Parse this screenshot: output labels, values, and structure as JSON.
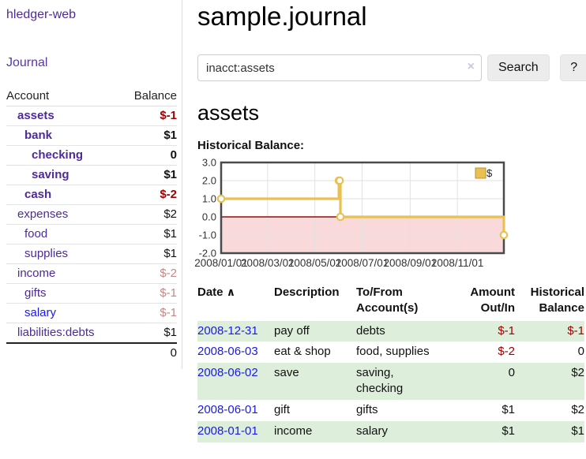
{
  "colors": {
    "link_purple": "#4e2a9a",
    "link_blue": "#1a1ae8",
    "negative_red": "#a40000",
    "negative_faded": "#c38888",
    "row_stripe_green": "#ddeedb",
    "chart_gold": "#e9c153",
    "chart_gold_border": "#bd9327",
    "chart_negative_fill": "#f9d9d9",
    "chart_zero_line": "#8f0d0d",
    "chart_grid": "#e2e2e2",
    "chart_border": "#4a4a4a"
  },
  "sidebar": {
    "brand": "hledger-web",
    "journal_link": "Journal",
    "accounts_table": {
      "headers": {
        "account": "Account",
        "balance": "Balance"
      },
      "rows": [
        {
          "name": "assets",
          "level": 0,
          "emphasis": true,
          "balance": "$-1",
          "balance_style": "negative",
          "link_style": "purple"
        },
        {
          "name": "bank",
          "level": 1,
          "emphasis": true,
          "balance": "$1",
          "balance_style": "normal",
          "link_style": "purple"
        },
        {
          "name": "checking",
          "level": 2,
          "emphasis": true,
          "balance": "0",
          "balance_style": "normal",
          "link_style": "purple"
        },
        {
          "name": "saving",
          "level": 2,
          "emphasis": true,
          "balance": "$1",
          "balance_style": "normal",
          "link_style": "purple"
        },
        {
          "name": "cash",
          "level": 1,
          "emphasis": true,
          "balance": "$-2",
          "balance_style": "negative",
          "link_style": "purple"
        },
        {
          "name": "expenses",
          "level": 0,
          "emphasis": false,
          "balance": "$2",
          "balance_style": "normal",
          "link_style": "purple"
        },
        {
          "name": "food",
          "level": 1,
          "emphasis": false,
          "balance": "$1",
          "balance_style": "normal",
          "link_style": "purple"
        },
        {
          "name": "supplies",
          "level": 1,
          "emphasis": false,
          "balance": "$1",
          "balance_style": "normal",
          "link_style": "purple"
        },
        {
          "name": "income",
          "level": 0,
          "emphasis": false,
          "balance": "$-2",
          "balance_style": "faded",
          "link_style": "purple"
        },
        {
          "name": "gifts",
          "level": 1,
          "emphasis": false,
          "balance": "$-1",
          "balance_style": "faded",
          "link_style": "purple"
        },
        {
          "name": "salary",
          "level": 1,
          "emphasis": false,
          "balance": "$-1",
          "balance_style": "faded",
          "link_style": "blue"
        },
        {
          "name": "liabilities:debts",
          "level": 0,
          "emphasis": false,
          "balance": "$1",
          "balance_style": "normal",
          "link_style": "purple"
        }
      ],
      "total": "0"
    }
  },
  "header": {
    "title": "sample.journal"
  },
  "search": {
    "query": "inacct:assets",
    "clear_icon": "×",
    "search_label": "Search",
    "help_label": "?"
  },
  "account_page": {
    "heading": "assets",
    "chart_label": "Historical Balance:"
  },
  "chart_data": {
    "type": "line",
    "step": true,
    "title": "Historical Balance:",
    "series": [
      {
        "name": "$",
        "points": [
          {
            "date": "2008-01-01",
            "value": 1
          },
          {
            "date": "2008-06-01",
            "value": 2
          },
          {
            "date": "2008-06-02",
            "value": 2
          },
          {
            "date": "2008-06-03",
            "value": 0
          },
          {
            "date": "2008-12-31",
            "value": -1
          }
        ]
      }
    ],
    "ylim": [
      -2,
      3
    ],
    "yticks": [
      3,
      2,
      1,
      0,
      -1,
      -2
    ],
    "xticks": [
      "2008/01/01",
      "2008/03/01",
      "2008/05/01",
      "2008/07/01",
      "2008/09/01",
      "2008/11/01"
    ],
    "x_range": [
      "2008-01-01",
      "2008-12-31"
    ],
    "legend": {
      "label": "$",
      "position": "top-right"
    },
    "grid": true,
    "negative_region_shaded": true
  },
  "register_table": {
    "headers": {
      "date": "Date",
      "sort_icon": "∧",
      "description": "Description",
      "accounts": "To/From\nAccount(s)",
      "amount": "Amount\nOut/In",
      "balance": "Historical\nBalance"
    },
    "rows": [
      {
        "date": "2008-12-31",
        "description": "pay off",
        "accounts": "debts",
        "amount": "$-1",
        "amount_style": "negative",
        "balance": "$-1",
        "balance_style": "negative"
      },
      {
        "date": "2008-06-03",
        "description": "eat & shop",
        "accounts": "food, supplies",
        "amount": "$-2",
        "amount_style": "negative",
        "balance": "0",
        "balance_style": "normal"
      },
      {
        "date": "2008-06-02",
        "description": "save",
        "accounts": "saving, checking",
        "amount": "0",
        "amount_style": "normal",
        "balance": "$2",
        "balance_style": "normal"
      },
      {
        "date": "2008-06-01",
        "description": "gift",
        "accounts": "gifts",
        "amount": "$1",
        "amount_style": "normal",
        "balance": "$2",
        "balance_style": "normal"
      },
      {
        "date": "2008-01-01",
        "description": "income",
        "accounts": "salary",
        "amount": "$1",
        "amount_style": "normal",
        "balance": "$1",
        "balance_style": "normal"
      }
    ]
  }
}
